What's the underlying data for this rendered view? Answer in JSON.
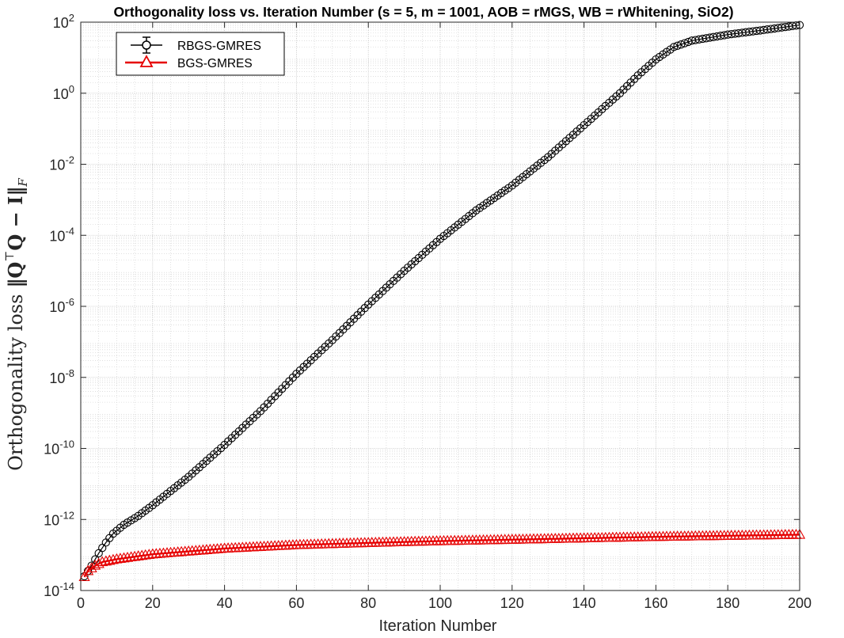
{
  "chart_data": {
    "type": "line",
    "title": "Orthogonality loss vs. Iteration Number (s = 5, m = 1001, AOB = rMGS, WB = rWhitening, SiO2)",
    "xlabel": "Iteration Number",
    "ylabel": "Orthogonality loss ‖QᵀQ − I‖F",
    "ylabel_parts": {
      "text": "Orthogonality loss",
      "formula": "‖Q",
      "sup": "⊤",
      "formula2": "Q − I‖",
      "sub": "F"
    },
    "x_scale": "linear",
    "y_scale": "log",
    "xlim": [
      0,
      200
    ],
    "ylim": [
      1e-14,
      100
    ],
    "x_ticks": [
      0,
      20,
      40,
      60,
      80,
      100,
      120,
      140,
      160,
      180,
      200
    ],
    "y_ticks": [
      {
        "value": 1e-14,
        "base": "10",
        "exp": "-14"
      },
      {
        "value": 1e-12,
        "base": "10",
        "exp": "-12"
      },
      {
        "value": 1e-10,
        "base": "10",
        "exp": "-10"
      },
      {
        "value": 1e-08,
        "base": "10",
        "exp": "-8"
      },
      {
        "value": 1e-06,
        "base": "10",
        "exp": "-6"
      },
      {
        "value": 0.0001,
        "base": "10",
        "exp": "-4"
      },
      {
        "value": 0.01,
        "base": "10",
        "exp": "-2"
      },
      {
        "value": 1,
        "base": "10",
        "exp": "0"
      },
      {
        "value": 100,
        "base": "10",
        "exp": "2"
      }
    ],
    "grid": true,
    "minor_grid": true,
    "legend_position": "top-left",
    "series": [
      {
        "name": "RBGS-GMRES",
        "color": "#000000",
        "marker": "circle",
        "anchors_x": [
          1,
          3,
          5,
          7,
          9,
          12,
          16,
          20,
          25,
          30,
          35,
          40,
          50,
          60,
          70,
          80,
          90,
          100,
          110,
          120,
          130,
          140,
          150,
          155,
          160,
          165,
          170,
          180,
          190,
          200
        ],
        "anchors_log10y": [
          -13.6,
          -13.3,
          -12.95,
          -12.65,
          -12.4,
          -12.15,
          -11.9,
          -11.6,
          -11.2,
          -10.8,
          -10.35,
          -9.9,
          -8.95,
          -7.9,
          -6.95,
          -5.95,
          -5.0,
          -4.1,
          -3.3,
          -2.6,
          -1.8,
          -0.9,
          0.0,
          0.5,
          0.95,
          1.3,
          1.48,
          1.65,
          1.78,
          1.92
        ]
      },
      {
        "name": "BGS-GMRES",
        "color": "#e60000",
        "marker": "triangle",
        "anchors_x": [
          1,
          2,
          4,
          6,
          10,
          15,
          20,
          30,
          40,
          60,
          80,
          100,
          120,
          140,
          160,
          180,
          200
        ],
        "anchors_log10y": [
          -13.62,
          -13.45,
          -13.3,
          -13.2,
          -13.12,
          -13.05,
          -12.98,
          -12.9,
          -12.82,
          -12.72,
          -12.66,
          -12.61,
          -12.57,
          -12.53,
          -12.49,
          -12.46,
          -12.43
        ]
      }
    ]
  }
}
